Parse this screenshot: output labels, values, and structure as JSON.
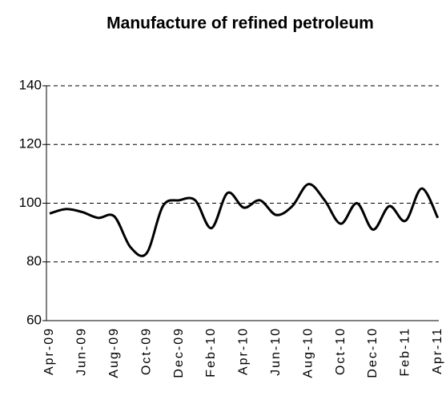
{
  "chart_data": {
    "type": "line",
    "title": "Manufacture of refined petroleum",
    "categories": [
      "Apr-09",
      null,
      "Jun-09",
      null,
      "Aug-09",
      null,
      "Oct-09",
      null,
      "Dec-09",
      null,
      "Feb-10",
      null,
      "Apr-10",
      null,
      "Jun-10",
      null,
      "Aug-10",
      null,
      "Oct-10",
      null,
      "Dec-10",
      null,
      "Feb-11",
      null,
      "Apr-11"
    ],
    "series": [
      {
        "name": "Manufacture of refined petroleum",
        "color": "#000000",
        "values": [
          96.5,
          98,
          97,
          95,
          95.5,
          85,
          83,
          99,
          101,
          101,
          91.5,
          103.5,
          98.5,
          101,
          96,
          99,
          106.5,
          101,
          93,
          100,
          91,
          99,
          94,
          105,
          95
        ]
      }
    ],
    "ylim": [
      60,
      140
    ],
    "yticks": [
      60,
      80,
      100,
      120,
      140
    ],
    "grid": true
  }
}
